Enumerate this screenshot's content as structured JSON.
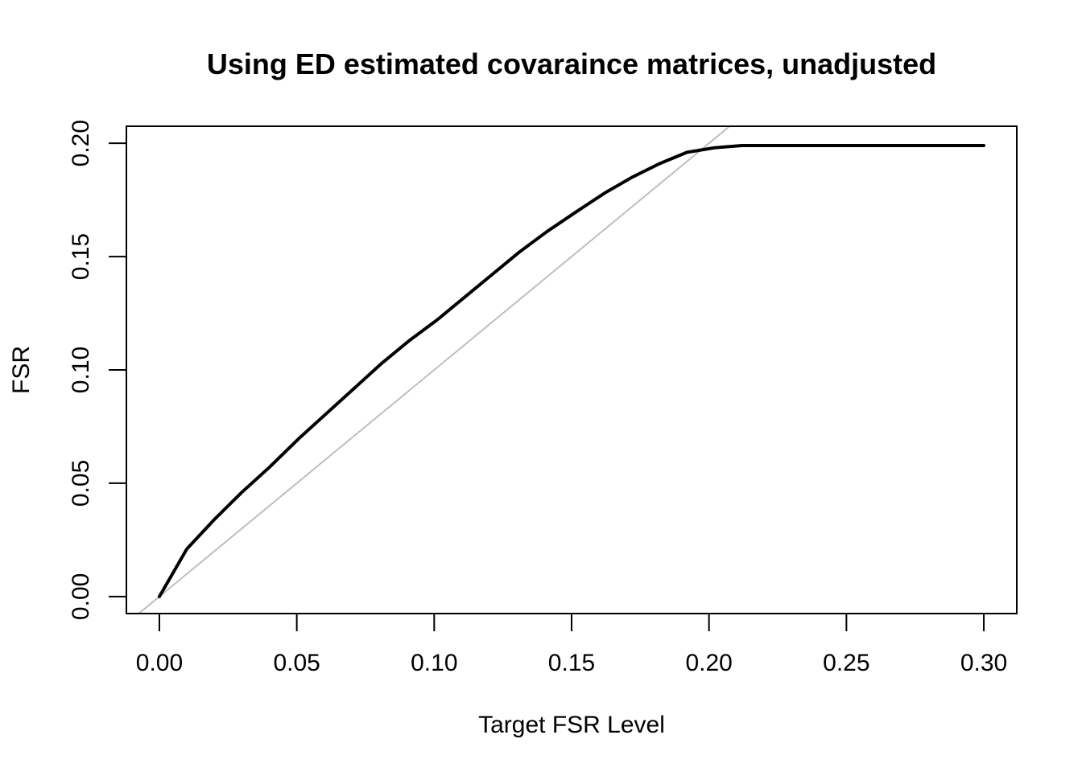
{
  "chart_data": {
    "type": "line",
    "title": "Using ED estimated covaraince matrices, unadjusted",
    "xlabel": "Target FSR Level",
    "ylabel": "FSR",
    "xlim": [
      -0.012,
      0.312
    ],
    "ylim": [
      -0.0075,
      0.2075
    ],
    "x_ticks": [
      0.0,
      0.05,
      0.1,
      0.15,
      0.2,
      0.25,
      0.3
    ],
    "x_tick_labels": [
      "0.00",
      "0.05",
      "0.10",
      "0.15",
      "0.20",
      "0.25",
      "0.30"
    ],
    "y_ticks": [
      0.0,
      0.05,
      0.1,
      0.15,
      0.2
    ],
    "y_tick_labels": [
      "0.00",
      "0.05",
      "0.10",
      "0.15",
      "0.20"
    ],
    "grid": false,
    "legend": "none",
    "series": [
      {
        "color": "#000000",
        "x": [
          0.0,
          0.01,
          0.02,
          0.03,
          0.04,
          0.051,
          0.061,
          0.071,
          0.081,
          0.091,
          0.101,
          0.111,
          0.121,
          0.131,
          0.141,
          0.152,
          0.162,
          0.172,
          0.182,
          0.192,
          0.202,
          0.212,
          0.222,
          0.232,
          0.242,
          0.253,
          0.263,
          0.273,
          0.283,
          0.293,
          0.3
        ],
        "y": [
          0.0,
          0.021,
          0.034,
          0.046,
          0.057,
          0.07,
          0.081,
          0.092,
          0.103,
          0.113,
          0.122,
          0.132,
          0.142,
          0.152,
          0.161,
          0.17,
          0.178,
          0.185,
          0.191,
          0.196,
          0.198,
          0.199,
          0.199,
          0.199,
          0.199,
          0.199,
          0.199,
          0.199,
          0.199,
          0.199,
          0.199
        ]
      },
      {
        "color": "#bebebe",
        "x": [
          -0.012,
          0.312
        ],
        "y": [
          -0.012,
          0.312
        ]
      }
    ]
  }
}
